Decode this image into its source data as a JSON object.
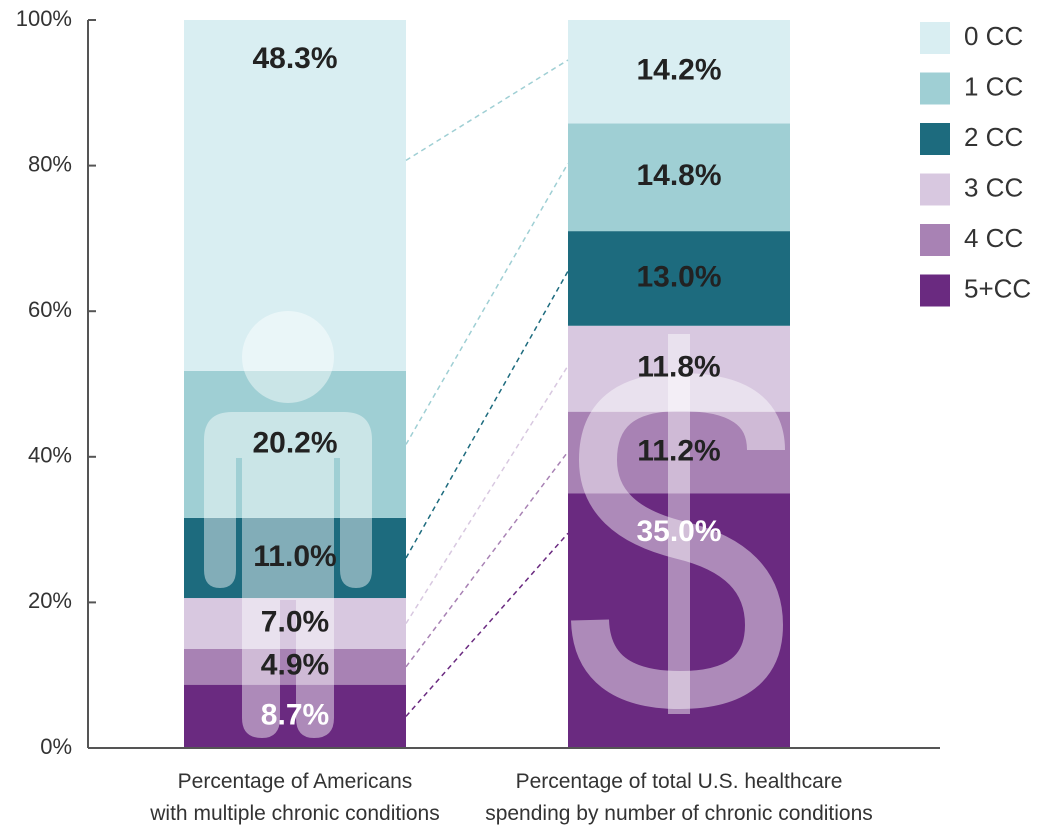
{
  "chart_data": {
    "type": "stacked_bar",
    "categories": [
      "Percentage of Americans\nwith multiple chronic conditions",
      "Percentage of total U.S. healthcare\nspending by number of chronic conditions"
    ],
    "series": [
      {
        "name": "0 CC",
        "color": "#d9eef2",
        "values": [
          48.3,
          14.2
        ],
        "value_labels": [
          "48.3%",
          "14.2%"
        ]
      },
      {
        "name": "1 CC",
        "color": "#9fcfd4",
        "values": [
          20.2,
          14.8
        ],
        "value_labels": [
          "20.2%",
          "14.8%"
        ]
      },
      {
        "name": "2 CC",
        "color": "#1d6b7e",
        "values": [
          11.0,
          13.0
        ],
        "value_labels": [
          "11.0%",
          "13.0%"
        ]
      },
      {
        "name": "3 CC",
        "color": "#d8c8e0",
        "values": [
          7.0,
          11.8
        ],
        "value_labels": [
          "7.0%",
          "11.8%"
        ]
      },
      {
        "name": "4 CC",
        "color": "#a882b4",
        "values": [
          4.9,
          11.2
        ],
        "value_labels": [
          "4.9%",
          "11.2%"
        ]
      },
      {
        "name": "5+CC",
        "color": "#6a2a80",
        "values": [
          8.7,
          35.0
        ],
        "value_labels": [
          "8.7%",
          "35.0%"
        ]
      }
    ],
    "ylim": [
      0,
      100
    ],
    "yticks": [
      {
        "value": 0,
        "label": "0%"
      },
      {
        "value": 20,
        "label": "20%"
      },
      {
        "value": 40,
        "label": "40%"
      },
      {
        "value": 60,
        "label": "60%"
      },
      {
        "value": 80,
        "label": "80%"
      },
      {
        "value": 100,
        "label": "100%"
      }
    ],
    "legend": "right"
  }
}
